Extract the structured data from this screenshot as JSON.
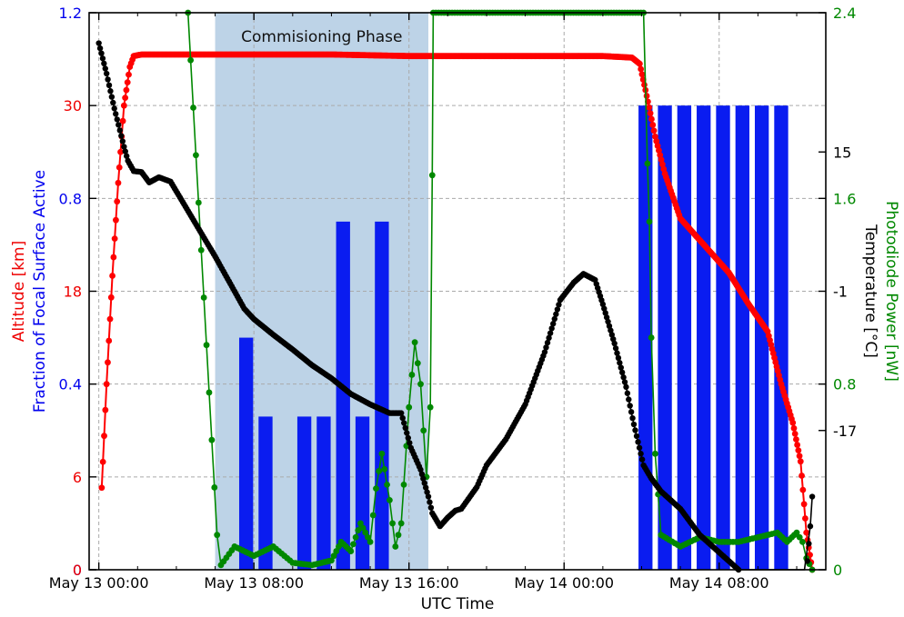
{
  "chart_data": {
    "type": "mixed",
    "xlabel": "UTC Time",
    "x_ticks": [
      "May 13 00:00",
      "May 13 08:00",
      "May 13 16:00",
      "May 14 00:00",
      "May 14 08:00"
    ],
    "x_range_hours": [
      -0.5,
      37.5
    ],
    "annotation": {
      "label": "Commisioning Phase",
      "x_start_hours": 6,
      "x_end_hours": 17
    },
    "axes": {
      "fraction": {
        "label": "Fraction of Focal Surface Active",
        "ticks": [
          "0",
          "0.4",
          "0.8",
          "1.2"
        ],
        "range": [
          0,
          1.2
        ],
        "color": "#0000ee"
      },
      "altitude": {
        "label": "Altitude [km]",
        "ticks": [
          "0",
          "6",
          "18",
          "30"
        ],
        "range": [
          0,
          36
        ],
        "color": "#ee0000"
      },
      "power": {
        "label": "Photodiode Power [nW]",
        "ticks": [
          "0",
          "0.8",
          "1.6",
          "2.4"
        ],
        "range": [
          0,
          2.4
        ],
        "color": "#008800"
      },
      "temperature": {
        "label": "Temperature [°C]",
        "ticks": [
          "-17",
          "-1",
          "15"
        ],
        "range": [
          -33,
          31
        ],
        "color": "#000000"
      }
    },
    "series": [
      {
        "kind": "bar",
        "axis": "fraction",
        "color": "#0a1cf0",
        "bar_width_hours": 0.72,
        "x": [
          7.6,
          8.6,
          10.6,
          11.6,
          12.6,
          13.6,
          14.6,
          28.2,
          29.2,
          30.2,
          31.2,
          32.2,
          33.2,
          34.2,
          35.2
        ],
        "values": [
          0.5,
          0.33,
          0.33,
          0.33,
          0.75,
          0.33,
          0.75,
          1.0,
          1.0,
          1.0,
          1.0,
          1.0,
          1.0,
          1.0,
          1.0
        ]
      },
      {
        "kind": "line",
        "axis": "altitude",
        "color": "#ff0000",
        "x": [
          0.15,
          0.4,
          0.7,
          1.0,
          1.3,
          1.6,
          1.8,
          2.2,
          4,
          8,
          12,
          16,
          20,
          24,
          26,
          27.5,
          27.9,
          28.2,
          28.7,
          29.2,
          30,
          31.5,
          32.5,
          33.5,
          34.5,
          35.2,
          35.8,
          36.2,
          36.5,
          36.8
        ],
        "values": [
          5.3,
          12,
          19,
          25,
          30,
          32.5,
          33.2,
          33.3,
          33.3,
          33.3,
          33.3,
          33.2,
          33.2,
          33.2,
          33.2,
          33.1,
          32.7,
          31,
          28,
          25.6,
          22.7,
          20.6,
          19.2,
          17.2,
          15.4,
          12,
          9.5,
          7,
          2.4,
          0
        ]
      },
      {
        "kind": "line",
        "axis": "power",
        "color": "#008800",
        "x": [
          4.6,
          6.1,
          6.3,
          7,
          8,
          9,
          10,
          11,
          11.5,
          12,
          12.5,
          13,
          13.5,
          14,
          14.3,
          14.6,
          15,
          15.3,
          15.6,
          16,
          16.3,
          16.6,
          16.9,
          17.1,
          17.2,
          17.25,
          28.1,
          28.3,
          28.4,
          28.5,
          28.7,
          29,
          30,
          31,
          32,
          33,
          34,
          35,
          35.5,
          36,
          36.3,
          36.5,
          36.8
        ],
        "values": [
          2.4,
          0.15,
          0.02,
          0.1,
          0.06,
          0.1,
          0.03,
          0.02,
          0.03,
          0.04,
          0.12,
          0.08,
          0.2,
          0.12,
          0.35,
          0.5,
          0.3,
          0.1,
          0.2,
          0.7,
          0.98,
          0.8,
          0.4,
          0.7,
          1.7,
          2.4,
          2.4,
          1.75,
          1.5,
          1.0,
          0.5,
          0.15,
          0.1,
          0.14,
          0.12,
          0.12,
          0.14,
          0.16,
          0.12,
          0.16,
          0.12,
          0.05,
          0.0
        ]
      },
      {
        "kind": "line",
        "axis": "temperature",
        "color": "#000000",
        "x": [
          0,
          0.4,
          0.8,
          1.3,
          1.5,
          1.8,
          2.2,
          2.6,
          3.1,
          3.7,
          6,
          6.2,
          6.5,
          7,
          7.5,
          8,
          9,
          10,
          11,
          12,
          13,
          14,
          15,
          15.6,
          16.1,
          16.6,
          17,
          17.2,
          17.6,
          18,
          18.4,
          18.7,
          19.5,
          20,
          21,
          22,
          23,
          23.8,
          24.5,
          25,
          25.6,
          26,
          26.6,
          27.2,
          27.6,
          28.1,
          28.5,
          29,
          30,
          31,
          32,
          33,
          34,
          35,
          35.8,
          36.4,
          36.7,
          36.8
        ],
        "values": [
          27.5,
          24,
          20,
          15.6,
          14,
          12.8,
          12.7,
          11.5,
          12.1,
          11.6,
          3,
          2.2,
          1,
          -1,
          -3,
          -4.2,
          -6,
          -7.7,
          -9.5,
          -11,
          -12.8,
          -14,
          -15,
          -15,
          -19,
          -21.5,
          -24.6,
          -26.5,
          -28,
          -27,
          -26.2,
          -26,
          -23.5,
          -21,
          -18,
          -14,
          -8,
          -2,
          0,
          1,
          0.3,
          -2.5,
          -7,
          -12,
          -16.3,
          -21,
          -22.5,
          -24,
          -26,
          -29,
          -31,
          -33,
          -37,
          -39,
          -39.4,
          -36,
          -28,
          -24.6
        ]
      }
    ]
  }
}
